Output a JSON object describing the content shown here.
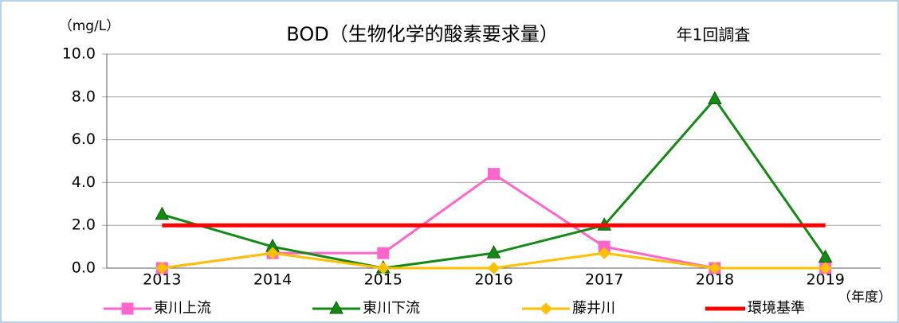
{
  "chart_data": {
    "type": "line",
    "title": "BOD（生物化学的酸素要求量）",
    "annotation": "年1回調査",
    "y_label": "（mg/L）",
    "x_label": "（年度）",
    "categories": [
      "2013",
      "2014",
      "2015",
      "2016",
      "2017",
      "2018",
      "2019"
    ],
    "series": [
      {
        "name": "東川上流",
        "color": "#ff66cc",
        "marker": "square",
        "values": [
          0,
          0.7,
          0.7,
          4.4,
          1.0,
          0,
          0
        ]
      },
      {
        "name": "東川下流",
        "color": "#138a13",
        "marker": "triangle",
        "values": [
          2.5,
          1.0,
          0,
          0.7,
          2.0,
          7.9,
          0.5
        ]
      },
      {
        "name": "藤井川",
        "color": "#ffc000",
        "marker": "diamond",
        "values": [
          0,
          0.7,
          0,
          0,
          0.7,
          0,
          0
        ]
      },
      {
        "name": "環境基準",
        "color": "#ff0000",
        "marker": "none",
        "values": [
          2,
          2,
          2,
          2,
          2,
          2,
          2
        ]
      }
    ],
    "ylim": [
      0,
      10
    ],
    "yticks": [
      {
        "value": 0,
        "label": "0.0"
      },
      {
        "value": 2,
        "label": "2.0"
      },
      {
        "value": 4,
        "label": "4.0"
      },
      {
        "value": 6,
        "label": "6.0"
      },
      {
        "value": 8,
        "label": "8.0"
      },
      {
        "value": 10,
        "label": "10.0"
      }
    ],
    "grid": true,
    "legend": "bottom"
  }
}
